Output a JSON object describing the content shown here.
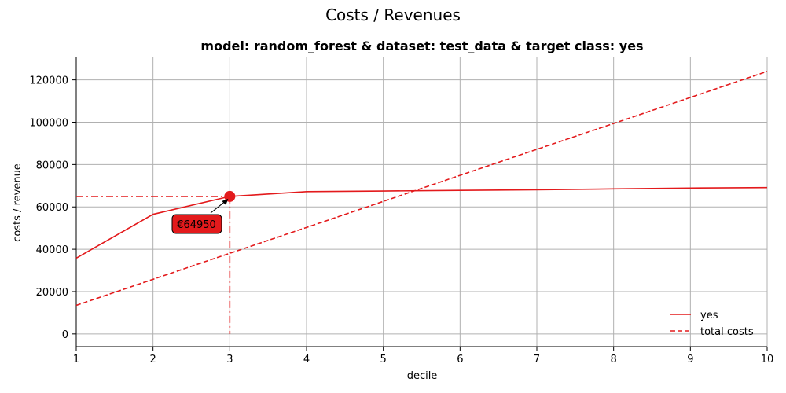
{
  "figure": {
    "title": "Costs / Revenues"
  },
  "chart_data": {
    "type": "line",
    "title": "model: random_forest & dataset: test_data & target class: yes",
    "xlabel": "decile",
    "ylabel": "costs / revenue",
    "xlim": [
      1,
      10
    ],
    "ylim": [
      -6000,
      131000
    ],
    "x": [
      1,
      2,
      3,
      4,
      5,
      6,
      7,
      8,
      9,
      10
    ],
    "xticks": [
      1,
      2,
      3,
      4,
      5,
      6,
      7,
      8,
      9,
      10
    ],
    "yticks": [
      0,
      20000,
      40000,
      60000,
      80000,
      100000,
      120000
    ],
    "grid": true,
    "legend_position": "lower-right",
    "series": [
      {
        "name": "yes",
        "style": "solid",
        "color": "#e31a1c",
        "values": [
          35800,
          56500,
          64950,
          67200,
          67500,
          67800,
          68100,
          68500,
          68900,
          69100
        ]
      },
      {
        "name": "total costs",
        "style": "dashed",
        "color": "#e31a1c",
        "values": [
          13500,
          25800,
          38100,
          50300,
          62600,
          74900,
          87200,
          99400,
          111700,
          124000
        ]
      }
    ],
    "highlight": {
      "x": 3,
      "y": 64950,
      "label": "€64950",
      "color": "#e31a1c"
    }
  }
}
